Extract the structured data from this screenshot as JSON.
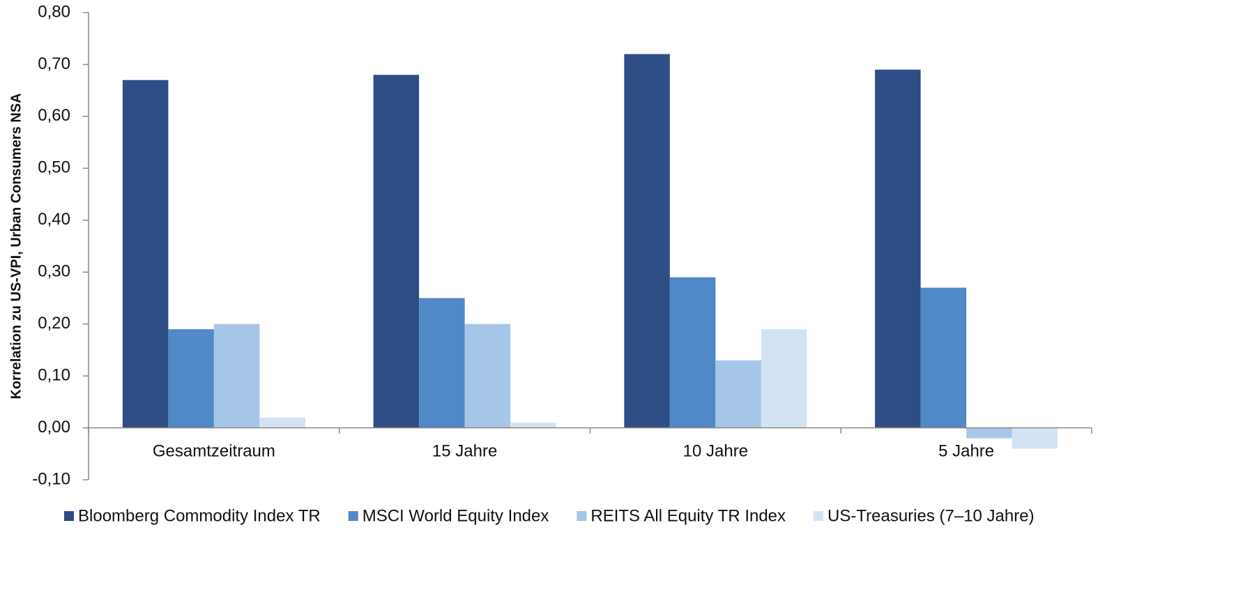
{
  "chart_data": {
    "type": "bar",
    "y_label": "Korrelation zu US-VPI, Urban Consumers NSA",
    "categories": [
      "Gesamtzeitraum",
      "15 Jahre",
      "10 Jahre",
      "5 Jahre"
    ],
    "series": [
      {
        "name": "Bloomberg Commodity Index TR",
        "color": "#2e4d85",
        "values": [
          0.67,
          0.68,
          0.72,
          0.69
        ]
      },
      {
        "name": "MSCI World Equity Index",
        "color": "#5089c6",
        "values": [
          0.19,
          0.25,
          0.29,
          0.27
        ]
      },
      {
        "name": "REITS All Equity TR Index",
        "color": "#a6c6e8",
        "values": [
          0.2,
          0.2,
          0.13,
          -0.02
        ]
      },
      {
        "name": "US-Treasuries (7–10 Jahre)",
        "color": "#d3e3f3",
        "values": [
          0.02,
          0.01,
          0.19,
          -0.04
        ]
      }
    ],
    "ylim": [
      -0.1,
      0.8
    ],
    "yticks": [
      {
        "value": -0.1,
        "label": "-0,10"
      },
      {
        "value": 0,
        "label": "0,00"
      },
      {
        "value": 0.1,
        "label": "0,10"
      },
      {
        "value": 0.2,
        "label": "0,20"
      },
      {
        "value": 0.3,
        "label": "0,30"
      },
      {
        "value": 0.4,
        "label": "0,40"
      },
      {
        "value": 0.5,
        "label": "0,50"
      },
      {
        "value": 0.6,
        "label": "0,60"
      },
      {
        "value": 0.7,
        "label": "0,70"
      },
      {
        "value": 0.8,
        "label": "0,80"
      }
    ],
    "grid": false,
    "legend": "bottom"
  }
}
